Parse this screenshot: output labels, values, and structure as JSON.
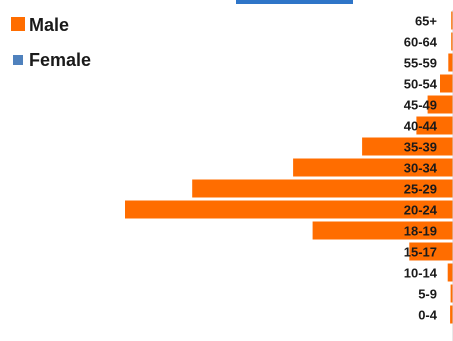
{
  "chart_data": {
    "type": "bar",
    "orientation": "horizontal",
    "layout": "population-pyramid",
    "categories": [
      "65+",
      "60-64",
      "55-59",
      "50-54",
      "45-49",
      "40-44",
      "35-39",
      "30-34",
      "25-29",
      "20-24",
      "18-19",
      "15-17",
      "10-14",
      "5-9",
      "0-4"
    ],
    "series": [
      {
        "name": "Male",
        "color": "#ff6d00",
        "values": [
          0.3,
          0.3,
          0.8,
          2.2,
          4.3,
          6.2,
          15.4,
          27.1,
          44.2,
          55.6,
          23.8,
          7.4,
          0.9,
          0.4,
          0.5
        ]
      },
      {
        "name": "Female",
        "color": "#4f81bd",
        "values": [
          0,
          0,
          0,
          0,
          0,
          0,
          0,
          0,
          0,
          0,
          0,
          0,
          0,
          0,
          0
        ]
      }
    ],
    "legend_position": "top-left",
    "grid": false
  }
}
